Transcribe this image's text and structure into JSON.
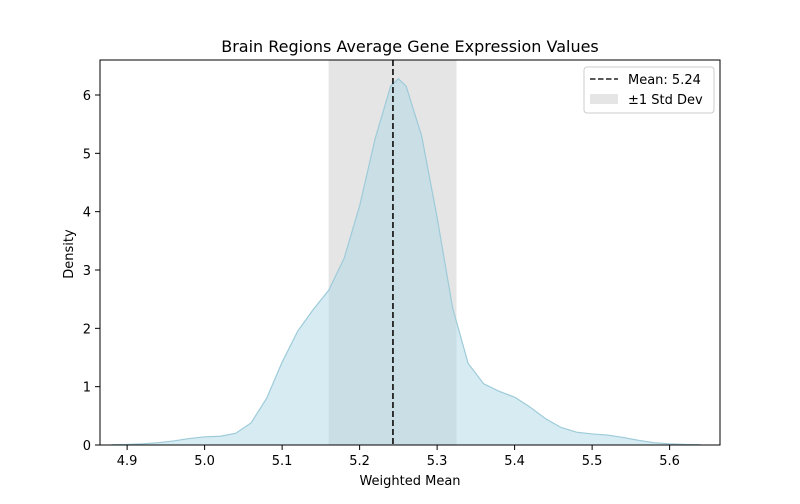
{
  "chart_data": {
    "type": "area",
    "title": "Brain Regions Average Gene Expression Values",
    "xlabel": "Weighted Mean",
    "ylabel": "Density",
    "xlim": [
      4.865,
      5.665
    ],
    "ylim": [
      0,
      6.6
    ],
    "x_ticks": [
      4.9,
      5.0,
      5.1,
      5.2,
      5.3,
      5.4,
      5.5,
      5.6
    ],
    "x_tick_labels": [
      "4.9",
      "5.0",
      "5.1",
      "5.2",
      "5.3",
      "5.4",
      "5.5",
      "5.6"
    ],
    "y_ticks": [
      0,
      1,
      2,
      3,
      4,
      5,
      6
    ],
    "y_tick_labels": [
      "0",
      "1",
      "2",
      "3",
      "4",
      "5",
      "6"
    ],
    "grid": false,
    "legend_position": "top-right",
    "series": [
      {
        "x": [
          4.88,
          4.9,
          4.92,
          4.94,
          4.96,
          4.98,
          5.0,
          5.02,
          5.04,
          5.06,
          5.08,
          5.1,
          5.12,
          5.14,
          5.16,
          5.18,
          5.2,
          5.22,
          5.24,
          5.25,
          5.26,
          5.28,
          5.3,
          5.32,
          5.34,
          5.36,
          5.38,
          5.4,
          5.42,
          5.44,
          5.46,
          5.48,
          5.5,
          5.52,
          5.54,
          5.56,
          5.58,
          5.6,
          5.62,
          5.64
        ],
        "y": [
          0.005,
          0.01,
          0.02,
          0.04,
          0.07,
          0.11,
          0.14,
          0.15,
          0.2,
          0.38,
          0.8,
          1.42,
          1.95,
          2.32,
          2.65,
          3.2,
          4.1,
          5.25,
          6.15,
          6.28,
          6.15,
          5.3,
          3.9,
          2.35,
          1.4,
          1.05,
          0.92,
          0.82,
          0.65,
          0.45,
          0.3,
          0.22,
          0.19,
          0.17,
          0.13,
          0.08,
          0.04,
          0.02,
          0.01,
          0.004
        ],
        "fill_color": "#add8e6",
        "line_color": "#9ecbd9"
      }
    ],
    "mean": {
      "value": 5.243,
      "label": "Mean: 5.24",
      "color": "#222222"
    },
    "std_band": {
      "low": 5.16,
      "high": 5.325,
      "label": "±1 Std Dev",
      "color": "#cccccc"
    }
  }
}
